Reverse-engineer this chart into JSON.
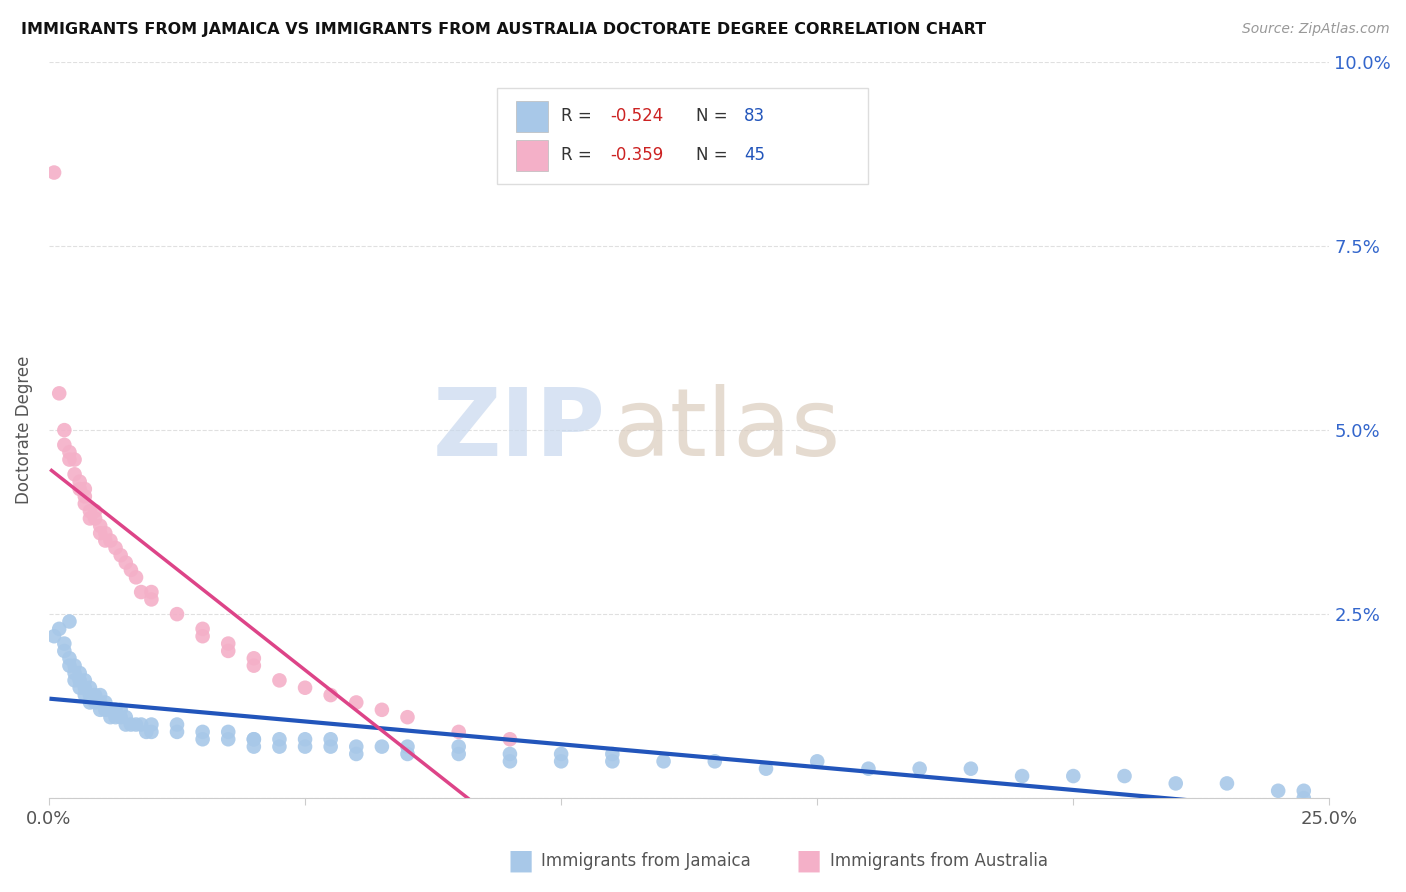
{
  "title": "IMMIGRANTS FROM JAMAICA VS IMMIGRANTS FROM AUSTRALIA DOCTORATE DEGREE CORRELATION CHART",
  "source": "Source: ZipAtlas.com",
  "ylabel": "Doctorate Degree",
  "xlim": [
    0.0,
    0.25
  ],
  "ylim": [
    0.0,
    0.1
  ],
  "jamaica_color": "#a8c8e8",
  "australia_color": "#f4b0c8",
  "jamaica_line_color": "#2255bb",
  "australia_line_color": "#dd4488",
  "jamaica_R": -0.524,
  "jamaica_N": 83,
  "australia_R": -0.359,
  "australia_N": 45,
  "legend_r_color": "#cc2222",
  "legend_n_color": "#2255bb",
  "background_color": "#ffffff",
  "grid_color": "#e0e0e0",
  "jamaica_x": [
    0.001,
    0.002,
    0.003,
    0.003,
    0.004,
    0.004,
    0.005,
    0.005,
    0.005,
    0.006,
    0.006,
    0.006,
    0.007,
    0.007,
    0.007,
    0.008,
    0.008,
    0.008,
    0.009,
    0.009,
    0.01,
    0.01,
    0.01,
    0.011,
    0.011,
    0.012,
    0.012,
    0.013,
    0.013,
    0.014,
    0.014,
    0.015,
    0.015,
    0.016,
    0.017,
    0.018,
    0.019,
    0.02,
    0.02,
    0.025,
    0.025,
    0.03,
    0.03,
    0.035,
    0.035,
    0.04,
    0.04,
    0.04,
    0.045,
    0.045,
    0.05,
    0.05,
    0.055,
    0.055,
    0.06,
    0.06,
    0.065,
    0.07,
    0.07,
    0.08,
    0.08,
    0.09,
    0.09,
    0.1,
    0.1,
    0.11,
    0.11,
    0.12,
    0.13,
    0.14,
    0.15,
    0.16,
    0.17,
    0.18,
    0.19,
    0.2,
    0.21,
    0.22,
    0.23,
    0.24,
    0.245,
    0.245,
    0.004
  ],
  "jamaica_y": [
    0.022,
    0.023,
    0.02,
    0.021,
    0.018,
    0.019,
    0.016,
    0.017,
    0.018,
    0.015,
    0.016,
    0.017,
    0.014,
    0.015,
    0.016,
    0.013,
    0.014,
    0.015,
    0.013,
    0.014,
    0.012,
    0.013,
    0.014,
    0.012,
    0.013,
    0.011,
    0.012,
    0.011,
    0.012,
    0.011,
    0.012,
    0.01,
    0.011,
    0.01,
    0.01,
    0.01,
    0.009,
    0.009,
    0.01,
    0.009,
    0.01,
    0.008,
    0.009,
    0.008,
    0.009,
    0.008,
    0.007,
    0.008,
    0.007,
    0.008,
    0.007,
    0.008,
    0.007,
    0.008,
    0.007,
    0.006,
    0.007,
    0.006,
    0.007,
    0.006,
    0.007,
    0.006,
    0.005,
    0.006,
    0.005,
    0.005,
    0.006,
    0.005,
    0.005,
    0.004,
    0.005,
    0.004,
    0.004,
    0.004,
    0.003,
    0.003,
    0.003,
    0.002,
    0.002,
    0.001,
    0.001,
    0.0,
    0.024
  ],
  "australia_x": [
    0.001,
    0.002,
    0.003,
    0.003,
    0.004,
    0.004,
    0.005,
    0.005,
    0.006,
    0.006,
    0.007,
    0.007,
    0.007,
    0.008,
    0.008,
    0.009,
    0.009,
    0.01,
    0.01,
    0.011,
    0.011,
    0.012,
    0.013,
    0.014,
    0.015,
    0.016,
    0.017,
    0.018,
    0.02,
    0.02,
    0.025,
    0.03,
    0.03,
    0.035,
    0.035,
    0.04,
    0.04,
    0.045,
    0.05,
    0.055,
    0.06,
    0.065,
    0.07,
    0.08,
    0.09
  ],
  "australia_y": [
    0.085,
    0.055,
    0.05,
    0.048,
    0.046,
    0.047,
    0.044,
    0.046,
    0.042,
    0.043,
    0.04,
    0.041,
    0.042,
    0.038,
    0.039,
    0.038,
    0.039,
    0.036,
    0.037,
    0.035,
    0.036,
    0.035,
    0.034,
    0.033,
    0.032,
    0.031,
    0.03,
    0.028,
    0.027,
    0.028,
    0.025,
    0.022,
    0.023,
    0.021,
    0.02,
    0.019,
    0.018,
    0.016,
    0.015,
    0.014,
    0.013,
    0.012,
    0.011,
    0.009,
    0.008
  ],
  "watermark_zip_color": "#c8d8ee",
  "watermark_atlas_color": "#d0c8c0"
}
